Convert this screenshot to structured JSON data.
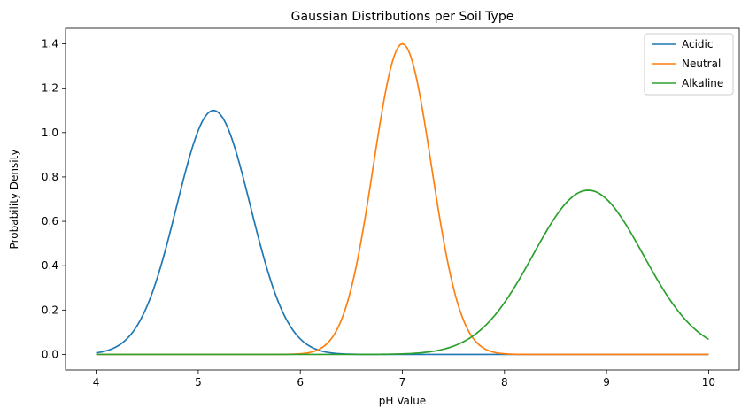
{
  "chart_data": {
    "type": "line",
    "title": "Gaussian Distributions per Soil Type",
    "xlabel": "pH Value",
    "ylabel": "Probability Density",
    "xlim": [
      3.7,
      10.3
    ],
    "ylim": [
      -0.07,
      1.47
    ],
    "xticks": [
      4,
      5,
      6,
      7,
      8,
      9,
      10
    ],
    "yticks": [
      0.0,
      0.2,
      0.4,
      0.6,
      0.8,
      1.0,
      1.2,
      1.4
    ],
    "ytick_labels": [
      "0.0",
      "0.2",
      "0.4",
      "0.6",
      "0.8",
      "1.0",
      "1.2",
      "1.4"
    ],
    "grid": false,
    "legend_position": "top-right",
    "series": [
      {
        "name": "Acidic",
        "color": "#1f77b4",
        "distribution": "normal",
        "mean": 5.15,
        "std": 0.362,
        "peak": 1.1,
        "x_range": [
          4,
          10
        ]
      },
      {
        "name": "Neutral",
        "color": "#ff7f0e",
        "distribution": "normal",
        "mean": 7.0,
        "std": 0.285,
        "peak": 1.4,
        "x_range": [
          4,
          10
        ]
      },
      {
        "name": "Alkaline",
        "color": "#2ca02c",
        "distribution": "normal",
        "mean": 8.82,
        "std": 0.54,
        "peak": 0.74,
        "x_range": [
          4,
          10
        ]
      }
    ]
  }
}
